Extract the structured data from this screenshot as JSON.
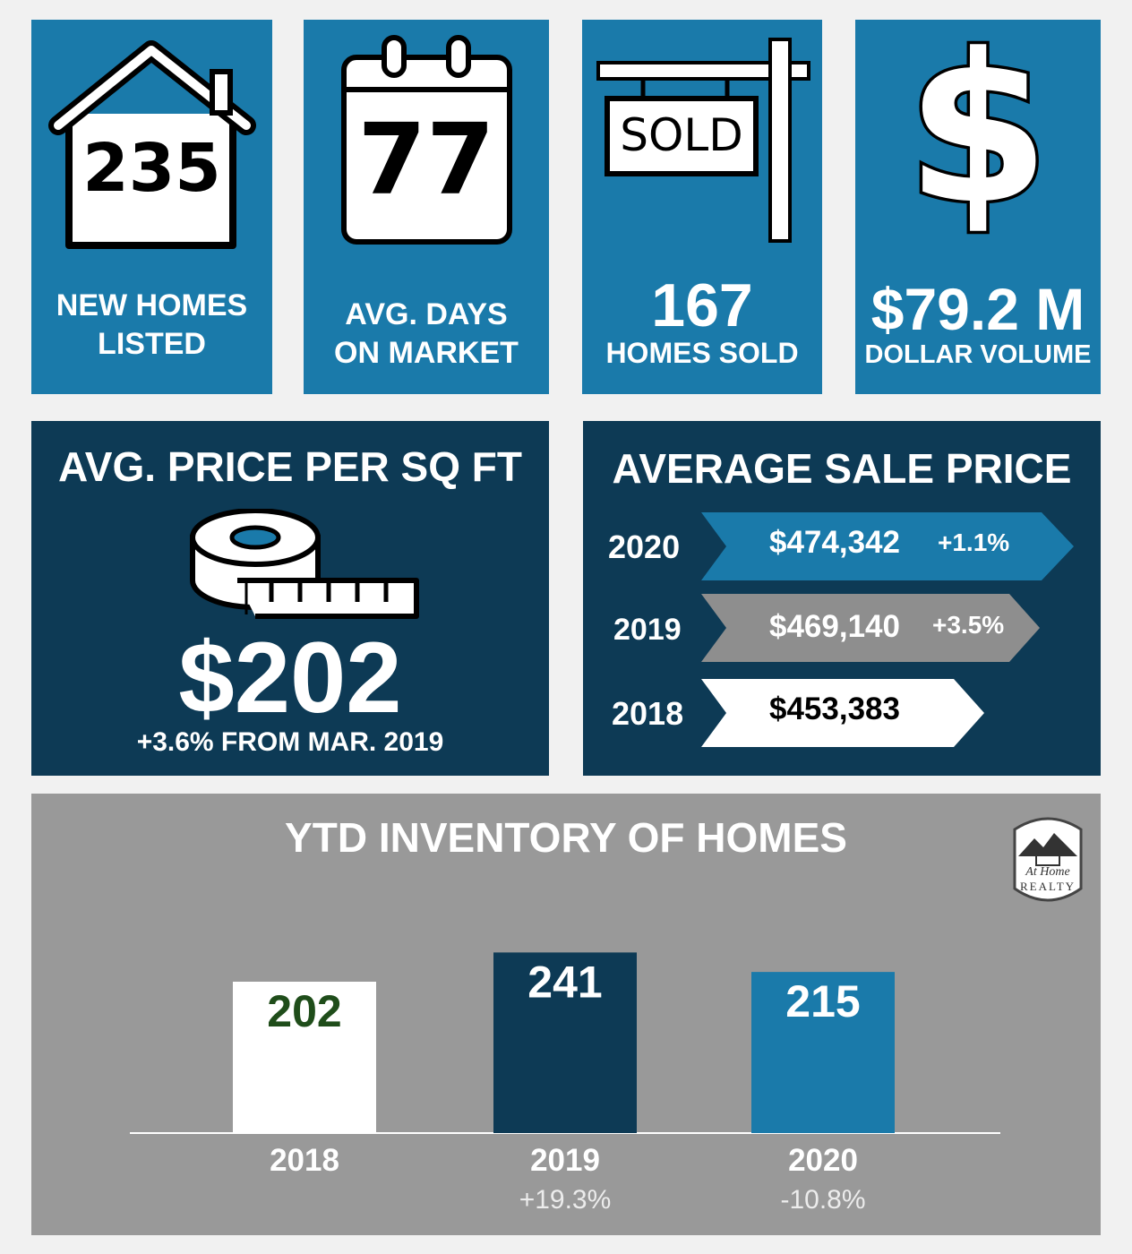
{
  "colors": {
    "blue": "#1a7aaa",
    "navy": "#0d3a55",
    "gray": "#999999",
    "white": "#ffffff",
    "green_text": "#1f4d1a"
  },
  "stats": {
    "new_listings": {
      "value": "235",
      "label_line1": "NEW HOMES",
      "label_line2": "LISTED",
      "icon": "house-icon"
    },
    "days_on_market": {
      "value": "77",
      "label_line1": "AVG. DAYS",
      "label_line2": "ON MARKET",
      "icon": "calendar-icon"
    },
    "homes_sold": {
      "sign_text": "SOLD",
      "value": "167",
      "label": "HOMES SOLD",
      "icon": "sold-sign-icon"
    },
    "dollar_volume": {
      "value": "$79.2 M",
      "label": "DOLLAR VOLUME",
      "icon": "dollar-icon"
    }
  },
  "price_per_sqft": {
    "title": "AVG. PRICE PER SQ FT",
    "value": "$202",
    "change": "+3.6% FROM MAR. 2019",
    "icon": "tape-measure-icon"
  },
  "average_sale_price": {
    "title": "AVERAGE SALE PRICE",
    "rows": [
      {
        "year": "2020",
        "price": "$474,342",
        "change": "+1.1%",
        "color": "#1a7aaa"
      },
      {
        "year": "2019",
        "price": "$469,140",
        "change": "+3.5%",
        "color": "#8e8e8e"
      },
      {
        "year": "2018",
        "price": "$453,383",
        "change": "",
        "color": "#ffffff"
      }
    ]
  },
  "chart_data": {
    "type": "bar",
    "title": "YTD INVENTORY OF HOMES",
    "categories": [
      "2018",
      "2019",
      "2020"
    ],
    "values": [
      202,
      241,
      215
    ],
    "value_labels": [
      "202",
      "241",
      "215"
    ],
    "changes": [
      "",
      "+19.3%",
      "-10.8%"
    ],
    "bar_colors": [
      "#ffffff",
      "#0d3a55",
      "#1a7aaa"
    ],
    "label_colors": [
      "#1f4d1a",
      "#ffffff",
      "#ffffff"
    ],
    "xlabel": "",
    "ylabel": "",
    "grid": false
  },
  "logo": {
    "line1": "At Home",
    "line2": "REALTY"
  }
}
